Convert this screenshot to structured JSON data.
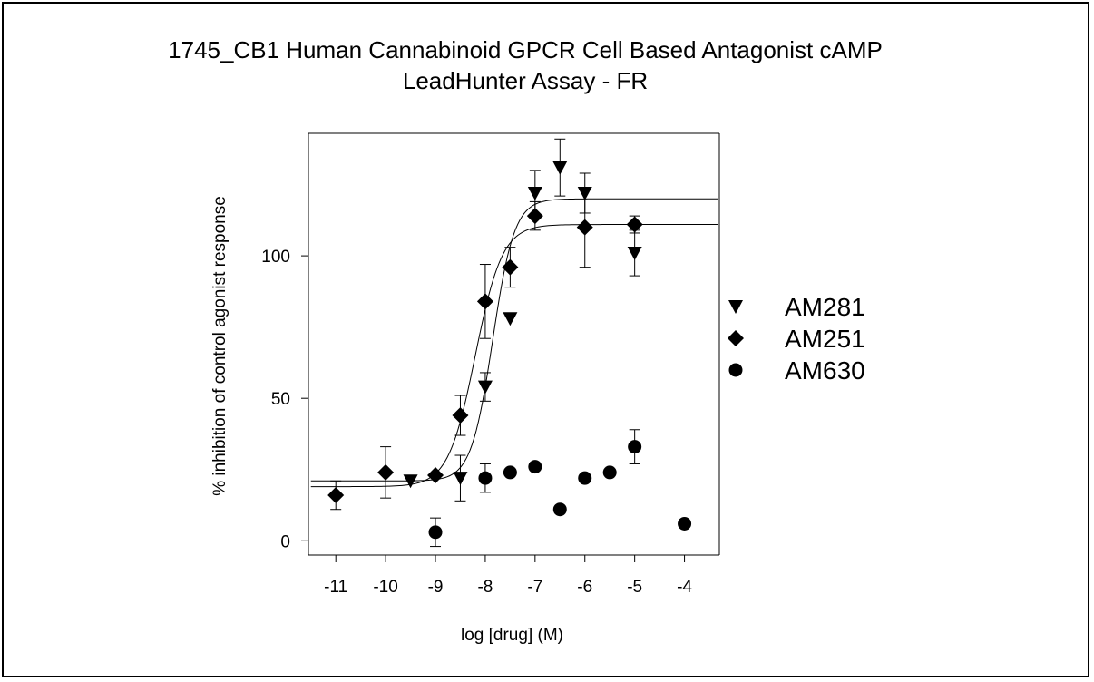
{
  "title_line1": "1745_CB1 Human Cannabinoid GPCR Cell Based Antagonist cAMP",
  "title_line2": "LeadHunter Assay - FR",
  "chart_data": {
    "type": "scatter",
    "title": "1745_CB1 Human Cannabinoid GPCR Cell Based Antagonist cAMP LeadHunter Assay - FR",
    "xlabel": "log [drug] (M)",
    "ylabel": "% inhibition of  control agonist response",
    "xlim": [
      -11.55,
      -3.3
    ],
    "ylim": [
      -5,
      143
    ],
    "xticks": [
      -11,
      -10,
      -9,
      -8,
      -7,
      -6,
      -5,
      -4
    ],
    "yticks": [
      0,
      50,
      100
    ],
    "xtick_labels": [
      "-11",
      "-10",
      "-9",
      "-8",
      "-7",
      "-6",
      "-5",
      "-4"
    ],
    "ytick_labels": [
      "0",
      "50",
      "100"
    ],
    "grid": false,
    "legend_position": "right",
    "series": [
      {
        "name": "AM281",
        "marker": "triangle-down",
        "points": [
          {
            "x": -9.5,
            "y": 21,
            "err": 0
          },
          {
            "x": -8.5,
            "y": 22,
            "err": 8
          },
          {
            "x": -8.0,
            "y": 54,
            "err": 5
          },
          {
            "x": -7.5,
            "y": 78,
            "err": 0
          },
          {
            "x": -7.0,
            "y": 122,
            "err": 8
          },
          {
            "x": -6.5,
            "y": 131,
            "err": 10
          },
          {
            "x": -6.0,
            "y": 122,
            "err": 7
          },
          {
            "x": -5.0,
            "y": 101,
            "err": 8
          }
        ],
        "fit": {
          "bottom": 21,
          "top": 120,
          "logec50": -7.85,
          "hill": 2.0
        }
      },
      {
        "name": "AM251",
        "marker": "diamond",
        "points": [
          {
            "x": -11.0,
            "y": 16,
            "err": 5
          },
          {
            "x": -10.0,
            "y": 24,
            "err": 9
          },
          {
            "x": -9.0,
            "y": 23,
            "err": 0
          },
          {
            "x": -8.5,
            "y": 44,
            "err": 7
          },
          {
            "x": -8.0,
            "y": 84,
            "err": 13
          },
          {
            "x": -7.5,
            "y": 96,
            "err": 7
          },
          {
            "x": -7.0,
            "y": 114,
            "err": 5
          },
          {
            "x": -6.0,
            "y": 110,
            "err": 14
          },
          {
            "x": -5.0,
            "y": 111,
            "err": 3
          }
        ],
        "fit": {
          "bottom": 19,
          "top": 111,
          "logec50": -8.2,
          "hill": 1.6
        }
      },
      {
        "name": "AM630",
        "marker": "circle",
        "points": [
          {
            "x": -9.0,
            "y": 3,
            "err": 5
          },
          {
            "x": -8.0,
            "y": 22,
            "err": 5
          },
          {
            "x": -7.5,
            "y": 24,
            "err": 0
          },
          {
            "x": -7.0,
            "y": 26,
            "err": 0
          },
          {
            "x": -6.5,
            "y": 11,
            "err": 0
          },
          {
            "x": -6.0,
            "y": 22,
            "err": 0
          },
          {
            "x": -5.5,
            "y": 24,
            "err": 0
          },
          {
            "x": -5.0,
            "y": 33,
            "err": 6
          },
          {
            "x": -4.0,
            "y": 6,
            "err": 0
          }
        ]
      }
    ]
  }
}
